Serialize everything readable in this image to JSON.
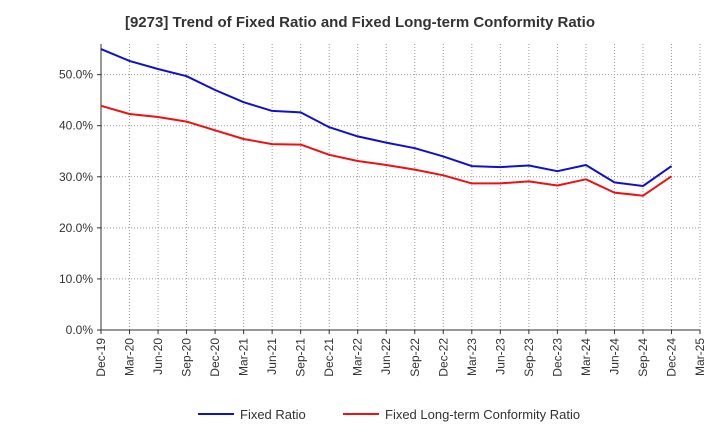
{
  "chart_data": {
    "type": "line",
    "title": "[9273]  Trend of Fixed Ratio and Fixed Long-term Conformity Ratio",
    "xlabel": "",
    "ylabel": "",
    "ylim": [
      0,
      56
    ],
    "yticks": [
      0,
      10,
      20,
      30,
      40,
      50
    ],
    "ytick_labels": [
      "0.0%",
      "10.0%",
      "20.0%",
      "30.0%",
      "40.0%",
      "50.0%"
    ],
    "categories": [
      "Dec-19",
      "Mar-20",
      "Jun-20",
      "Sep-20",
      "Dec-20",
      "Mar-21",
      "Jun-21",
      "Sep-21",
      "Dec-21",
      "Mar-22",
      "Jun-22",
      "Sep-22",
      "Dec-22",
      "Mar-23",
      "Jun-23",
      "Sep-23",
      "Dec-23",
      "Mar-24",
      "Jun-24",
      "Sep-24",
      "Dec-24",
      "Mar-25"
    ],
    "grid": true,
    "legend_position": "bottom",
    "series": [
      {
        "name": "Fixed Ratio",
        "color": "#1111cc",
        "values": [
          55.0,
          52.7,
          51.1,
          49.7,
          47.0,
          44.6,
          42.9,
          42.6,
          39.7,
          37.9,
          36.7,
          35.6,
          34.0,
          32.1,
          31.9,
          32.2,
          31.1,
          32.3,
          28.9,
          28.2,
          32.1,
          null
        ]
      },
      {
        "name": "Fixed Long-term Conformity Ratio",
        "color": "#ee1111",
        "values": [
          43.9,
          42.3,
          41.7,
          40.8,
          39.1,
          37.4,
          36.4,
          36.3,
          34.3,
          33.1,
          32.3,
          31.4,
          30.3,
          28.7,
          28.7,
          29.1,
          28.3,
          29.5,
          26.9,
          26.3,
          30.1,
          null
        ]
      }
    ]
  }
}
